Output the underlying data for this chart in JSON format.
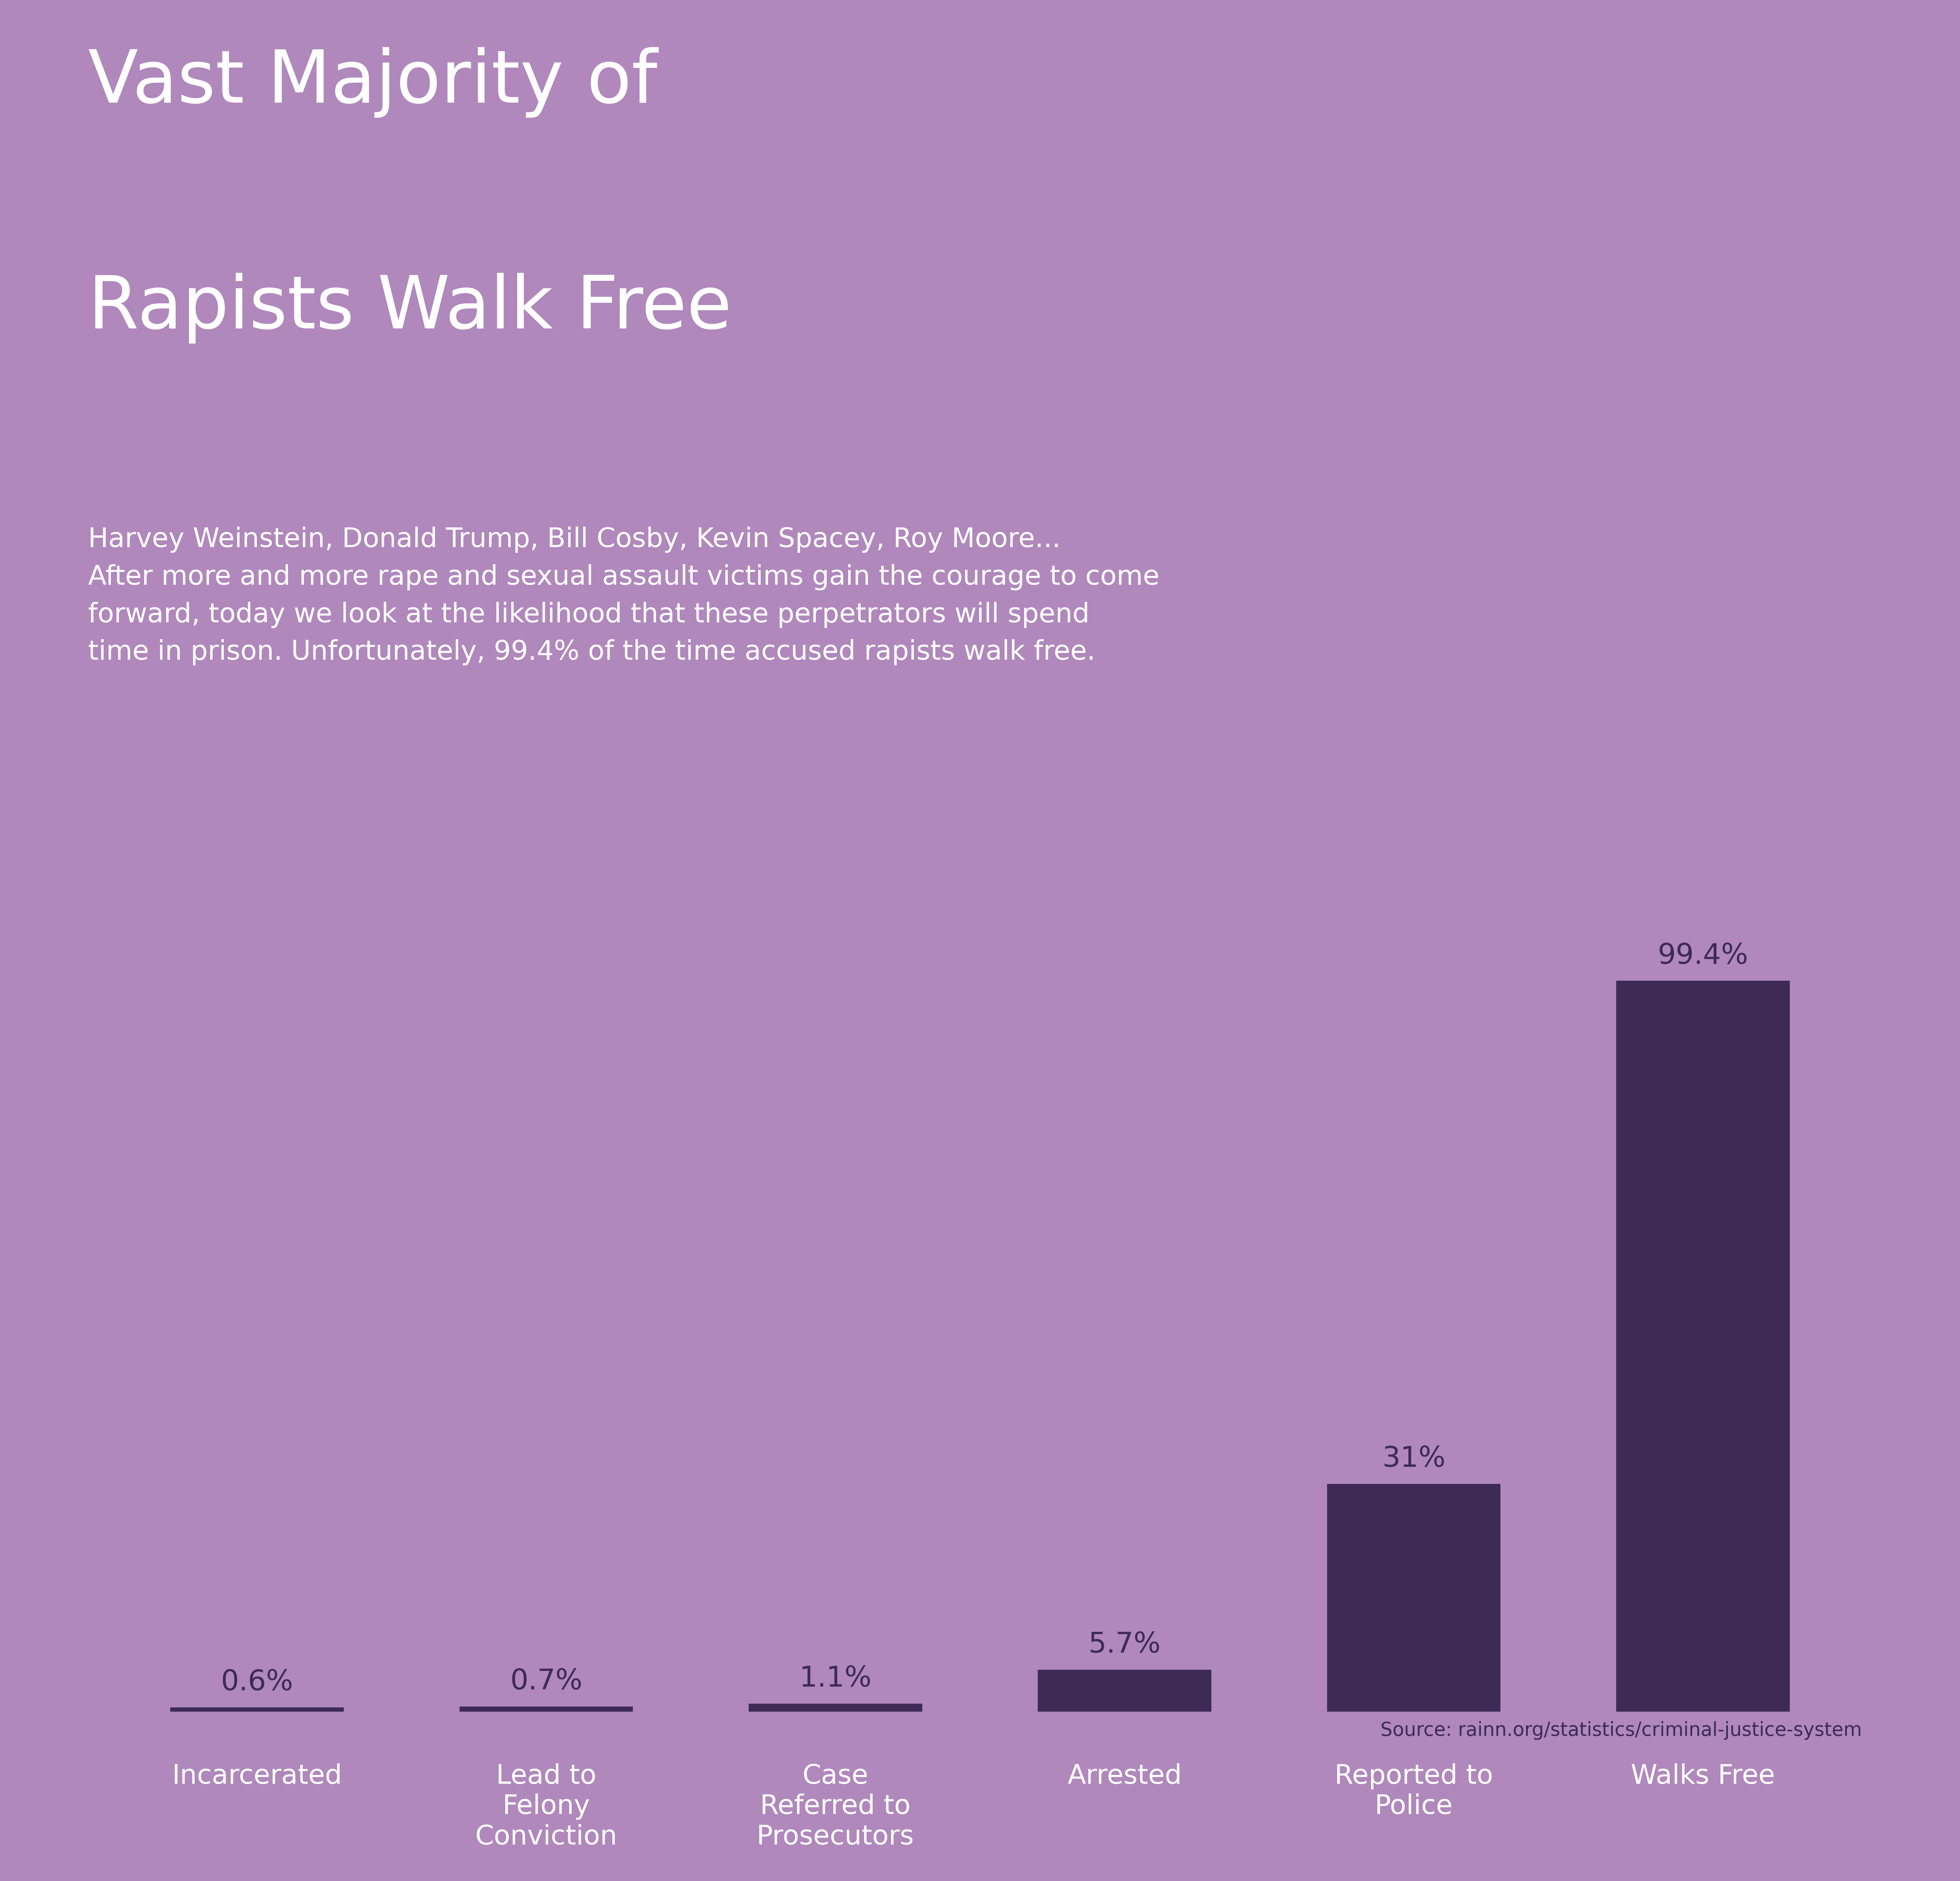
{
  "title_line1": "Vast Majority of",
  "title_line2": "Rapists Walk Free",
  "subtitle": "Harvey Weinstein, Donald Trump, Bill Cosby, Kevin Spacey, Roy Moore...\nAfter more and more rape and sexual assault victims gain the courage to come\nforward, today we look at the likelihood that these perpetrators will spend\ntime in prison. Unfortunately, 99.4% of the time accused rapists walk free.",
  "source": "Source: rainn.org/statistics/criminal-justice-system",
  "categories": [
    "Incarcerated",
    "Lead to\nFelony\nConviction",
    "Case\nReferred to\nProsecutors",
    "Arrested",
    "Reported to\nPolice",
    "Walks Free"
  ],
  "values": [
    0.6,
    0.7,
    1.1,
    5.7,
    31.0,
    99.4
  ],
  "labels": [
    "0.6%",
    "0.7%",
    "1.1%",
    "5.7%",
    "31%",
    "99.4%"
  ],
  "bar_color": "#3d2b56",
  "background_color": "#b088bc",
  "title_color": "#ffffff",
  "subtitle_color": "#ffffff",
  "label_color": "#3d2b56",
  "category_color": "#ffffff",
  "source_color": "#3d2b56",
  "title_fontsize": 185,
  "subtitle_fontsize": 68,
  "label_fontsize": 72,
  "category_fontsize": 68,
  "source_fontsize": 48,
  "ylim": [
    0,
    110
  ],
  "figwidth": 68.75,
  "figheight": 65.98
}
